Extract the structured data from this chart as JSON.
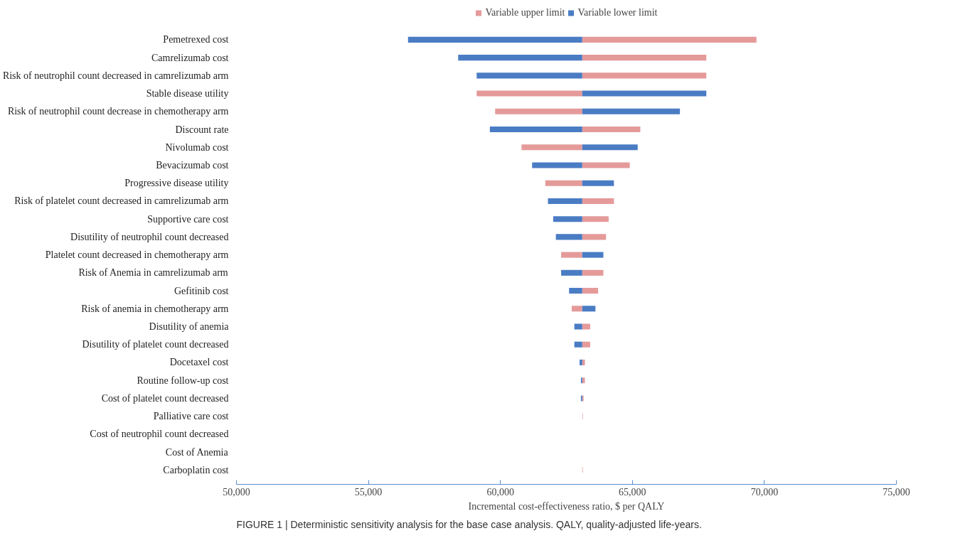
{
  "chart_data": {
    "type": "bar",
    "orientation": "horizontal",
    "xlabel": "Incremental cost-effectiveness ratio, $ per QALY",
    "categories": [
      "Pemetrexed cost",
      "Camrelizumab cost",
      "Risk of neutrophil count decreased in camrelizumab arm",
      "Stable disease utility",
      "Risk of neutrophil count decrease in chemotherapy arm",
      "Discount rate",
      "Nivolumab cost",
      "Bevacizumab cost",
      "Progressive disease utility",
      "Risk of platelet count decreased in camrelizumab arm",
      "Supportive care cost",
      "Disutility of neutrophil count decreased",
      "Platelet count decreased in chemotherapy arm",
      "Risk of Anemia in camrelizumab arm",
      "Gefitinib cost",
      "Risk of anemia in chemotherapy arm",
      "Disutility of anemia",
      "Disutility of platelet count decreased",
      "Docetaxel cost",
      "Routine follow-up cost",
      "Cost of platelet count decreased",
      "Palliative care cost",
      "Cost of neutrophil count decreased",
      "Cost of Anemia",
      "Carboplatin cost"
    ],
    "series": [
      {
        "name": "Variable upper limit",
        "color": "#e59a9a",
        "base": [
          63100,
          63100,
          63100,
          63100,
          63100,
          63100,
          63100,
          63100,
          63100,
          63100,
          63100,
          63100,
          63100,
          63100,
          63100,
          63100,
          63100,
          63100,
          63100,
          63100,
          63100,
          63100,
          null,
          null,
          63100
        ],
        "values": [
          6600,
          4700,
          4700,
          -4000,
          -3300,
          2200,
          -2300,
          1800,
          -1400,
          1200,
          1000,
          900,
          -800,
          800,
          600,
          -400,
          300,
          300,
          100,
          100,
          50,
          20,
          null,
          null,
          20
        ]
      },
      {
        "name": "Variable lower limit",
        "color": "#4a7cc4",
        "base": [
          63100,
          63100,
          63100,
          63100,
          63100,
          63100,
          63100,
          63100,
          63100,
          63100,
          63100,
          63100,
          63100,
          63100,
          63100,
          63100,
          63100,
          63100,
          63100,
          63100,
          63100,
          null,
          null,
          null,
          null
        ],
        "values": [
          -6600,
          -4700,
          -4000,
          4700,
          3700,
          -3500,
          2100,
          -1900,
          1200,
          -1300,
          -1100,
          -1000,
          800,
          -800,
          -500,
          500,
          -300,
          -300,
          -100,
          -50,
          -50,
          null,
          null,
          null,
          null
        ]
      }
    ],
    "xlim": [
      50000,
      75000
    ],
    "xticks": [
      {
        "value": 50000,
        "label": "50,000"
      },
      {
        "value": 55000,
        "label": "55,000"
      },
      {
        "value": 60000,
        "label": "60,000"
      },
      {
        "value": 65000,
        "label": "65,000"
      },
      {
        "value": 70000,
        "label": "70,000"
      },
      {
        "value": 75000,
        "label": "75,000"
      }
    ],
    "grid": false,
    "legend": "top",
    "annotations": [
      "FIGURE 1 | Deterministic sensitivity analysis for the base case analysis. QALY, quality-adjusted life-years."
    ]
  }
}
